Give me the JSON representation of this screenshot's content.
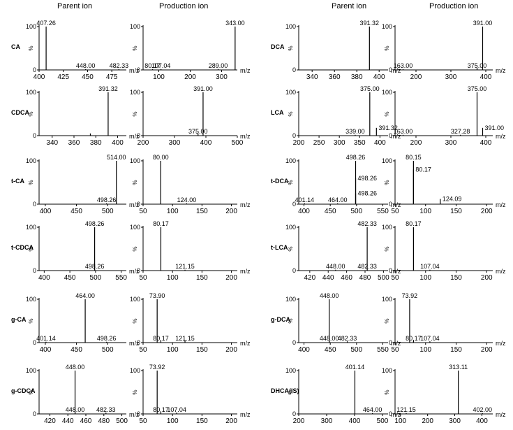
{
  "headers": {
    "left_parent": "Parent ion",
    "left_product": "Production ion",
    "right_parent": "Parent ion",
    "right_product": "Production ion"
  },
  "chart_data": [
    {
      "compound": "CA",
      "type": "bar",
      "role": "parent",
      "ylabel": "%",
      "xlabel": "m/z",
      "xticks": [
        400,
        425,
        450,
        475
      ],
      "xlim": [
        400,
        490
      ],
      "yticks": [
        0,
        100
      ],
      "ylim": [
        0,
        100
      ],
      "peaks": [
        {
          "mz": 407.26,
          "intensity": 100,
          "label": "407.26"
        },
        {
          "mz": 448.0,
          "intensity": 2,
          "label": "448.00"
        },
        {
          "mz": 482.33,
          "intensity": 2,
          "label": "482.33"
        }
      ]
    },
    {
      "compound": "CA",
      "type": "bar",
      "role": "product",
      "ylabel": "%",
      "xlabel": "m/z",
      "xticks": [
        100,
        200,
        300
      ],
      "xlim": [
        50,
        350
      ],
      "yticks": [
        0,
        100
      ],
      "ylim": [
        0,
        100
      ],
      "peaks": [
        {
          "mz": 343.0,
          "intensity": 100,
          "label": "343.00"
        },
        {
          "mz": 80.17,
          "intensity": 2,
          "label": "80.17"
        },
        {
          "mz": 107.04,
          "intensity": 2,
          "label": "107.04"
        },
        {
          "mz": 289.0,
          "intensity": 2,
          "label": "289.00"
        }
      ]
    },
    {
      "compound": "DCA",
      "type": "bar",
      "role": "parent",
      "ylabel": "%",
      "xlabel": "m/z",
      "xticks": [
        340,
        360,
        380,
        400
      ],
      "xlim": [
        328,
        408
      ],
      "yticks": [
        0,
        100
      ],
      "ylim": [
        0,
        100
      ],
      "peaks": [
        {
          "mz": 391.32,
          "intensity": 100,
          "label": "391.32"
        }
      ]
    },
    {
      "compound": "DCA",
      "type": "bar",
      "role": "product",
      "ylabel": "%",
      "xlabel": "m/z",
      "xticks": [
        200,
        300,
        400
      ],
      "xlim": [
        140,
        420
      ],
      "yticks": [
        0,
        100
      ],
      "ylim": [
        0,
        100
      ],
      "peaks": [
        {
          "mz": 391.0,
          "intensity": 100,
          "label": "391.00"
        },
        {
          "mz": 163.0,
          "intensity": 2,
          "label": "163.00"
        },
        {
          "mz": 375.0,
          "intensity": 5,
          "label": "375.00"
        }
      ]
    },
    {
      "compound": "CDCA",
      "type": "bar",
      "role": "parent",
      "ylabel": "%",
      "xlabel": "m/z",
      "xticks": [
        340,
        360,
        380,
        400
      ],
      "xlim": [
        328,
        408
      ],
      "yticks": [
        0,
        100
      ],
      "ylim": [
        0,
        100
      ],
      "peaks": [
        {
          "mz": 391.32,
          "intensity": 100,
          "label": "391.32"
        },
        {
          "mz": 375.0,
          "intensity": 5,
          "label": ""
        }
      ]
    },
    {
      "compound": "CDCA",
      "type": "bar",
      "role": "product",
      "ylabel": "%",
      "xlabel": "m/z",
      "xticks": [
        200,
        300,
        400,
        500
      ],
      "xlim": [
        200,
        500
      ],
      "yticks": [
        0,
        100
      ],
      "ylim": [
        0,
        100
      ],
      "peaks": [
        {
          "mz": 391.0,
          "intensity": 100,
          "label": "391.00"
        },
        {
          "mz": 375.0,
          "intensity": 5,
          "label": "375.00"
        }
      ]
    },
    {
      "compound": "LCA",
      "type": "bar",
      "role": "parent",
      "ylabel": "%",
      "xlabel": "m/z",
      "xticks": [
        200,
        250,
        300,
        350,
        400
      ],
      "xlim": [
        200,
        420
      ],
      "yticks": [
        0,
        100
      ],
      "ylim": [
        0,
        100
      ],
      "peaks": [
        {
          "mz": 375.0,
          "intensity": 100,
          "label": "375.00"
        },
        {
          "mz": 339.0,
          "intensity": 2,
          "label": "339.00"
        },
        {
          "mz": 391.32,
          "intensity": 18,
          "label": "391.32"
        }
      ]
    },
    {
      "compound": "LCA",
      "type": "bar",
      "role": "product",
      "ylabel": "%",
      "xlabel": "m/z",
      "xticks": [
        200,
        300,
        400
      ],
      "xlim": [
        140,
        420
      ],
      "yticks": [
        0,
        100
      ],
      "ylim": [
        0,
        100
      ],
      "peaks": [
        {
          "mz": 375.0,
          "intensity": 100,
          "label": "375.00"
        },
        {
          "mz": 163.0,
          "intensity": 2,
          "label": "163.00"
        },
        {
          "mz": 327.28,
          "intensity": 2,
          "label": "327.28"
        },
        {
          "mz": 391.0,
          "intensity": 18,
          "label": "391.00"
        }
      ]
    },
    {
      "compound": "t-CA",
      "type": "bar",
      "role": "parent",
      "ylabel": "%",
      "xlabel": "m/z",
      "xticks": [
        400,
        450,
        500
      ],
      "xlim": [
        390,
        530
      ],
      "yticks": [
        0,
        100
      ],
      "ylim": [
        0,
        100
      ],
      "peaks": [
        {
          "mz": 514.0,
          "intensity": 100,
          "label": "514.00"
        },
        {
          "mz": 498.26,
          "intensity": 2,
          "label": "498.26"
        }
      ]
    },
    {
      "compound": "t-CA",
      "type": "bar",
      "role": "product",
      "ylabel": "%",
      "xlabel": "m/z",
      "xticks": [
        50,
        100,
        150,
        200
      ],
      "xlim": [
        50,
        210
      ],
      "yticks": [
        0,
        100
      ],
      "ylim": [
        0,
        100
      ],
      "peaks": [
        {
          "mz": 80.0,
          "intensity": 100,
          "label": "80.00"
        },
        {
          "mz": 124.0,
          "intensity": 2,
          "label": "124.00"
        }
      ]
    },
    {
      "compound": "t-DCA",
      "type": "bar",
      "role": "parent",
      "ylabel": "%",
      "xlabel": "m/z",
      "xticks": [
        400,
        450,
        500,
        550
      ],
      "xlim": [
        390,
        560
      ],
      "yticks": [
        0,
        100
      ],
      "ylim": [
        0,
        100
      ],
      "peaks": [
        {
          "mz": 498.26,
          "intensity": 100,
          "label": "498.26"
        },
        {
          "mz": 401.14,
          "intensity": 2,
          "label": "401.14"
        },
        {
          "mz": 464.0,
          "intensity": 2,
          "label": "464.00"
        },
        {
          "mz": 498.26,
          "intensity": 60,
          "label": "498.26"
        },
        {
          "mz": 498.26,
          "intensity": 25,
          "label": "498.26"
        }
      ]
    },
    {
      "compound": "t-DCA",
      "type": "bar",
      "role": "product",
      "ylabel": "%",
      "xlabel": "m/z",
      "xticks": [
        50,
        100,
        150,
        200
      ],
      "xlim": [
        50,
        210
      ],
      "yticks": [
        0,
        100
      ],
      "ylim": [
        0,
        100
      ],
      "peaks": [
        {
          "mz": 80.15,
          "intensity": 100,
          "label": "80.15"
        },
        {
          "mz": 80.17,
          "intensity": 80,
          "label": "80.17"
        },
        {
          "mz": 124.09,
          "intensity": 12,
          "label": "124.09"
        }
      ]
    },
    {
      "compound": "t-CDCA",
      "type": "bar",
      "role": "parent",
      "ylabel": "%",
      "xlabel": "m/z",
      "xticks": [
        400,
        450,
        500,
        550
      ],
      "xlim": [
        390,
        560
      ],
      "yticks": [
        0,
        100
      ],
      "ylim": [
        0,
        100
      ],
      "peaks": [
        {
          "mz": 498.26,
          "intensity": 100,
          "label": "498.26"
        },
        {
          "mz": 498.26,
          "intensity": 3,
          "label": "498.26"
        }
      ]
    },
    {
      "compound": "t-CDCA",
      "type": "bar",
      "role": "product",
      "ylabel": "%",
      "xlabel": "m/z",
      "xticks": [
        50,
        100,
        150,
        200
      ],
      "xlim": [
        50,
        210
      ],
      "yticks": [
        0,
        100
      ],
      "ylim": [
        0,
        100
      ],
      "peaks": [
        {
          "mz": 80.17,
          "intensity": 100,
          "label": "80.17"
        },
        {
          "mz": 121.15,
          "intensity": 2,
          "label": "121.15"
        }
      ]
    },
    {
      "compound": "t-LCA",
      "type": "bar",
      "role": "parent",
      "ylabel": "%",
      "xlabel": "m/z",
      "xticks": [
        420,
        440,
        460,
        480,
        500
      ],
      "xlim": [
        408,
        505
      ],
      "yticks": [
        0,
        100
      ],
      "ylim": [
        0,
        100
      ],
      "peaks": [
        {
          "mz": 482.33,
          "intensity": 100,
          "label": "482.33"
        },
        {
          "mz": 448.0,
          "intensity": 2,
          "label": "448.00"
        },
        {
          "mz": 482.33,
          "intensity": 3,
          "label": "482.33"
        }
      ]
    },
    {
      "compound": "t-LCA",
      "type": "bar",
      "role": "product",
      "ylabel": "%",
      "xlabel": "m/z",
      "xticks": [
        50,
        100,
        150,
        200
      ],
      "xlim": [
        50,
        210
      ],
      "yticks": [
        0,
        100
      ],
      "ylim": [
        0,
        100
      ],
      "peaks": [
        {
          "mz": 80.17,
          "intensity": 100,
          "label": "80.17"
        },
        {
          "mz": 107.04,
          "intensity": 2,
          "label": "107.04"
        }
      ]
    },
    {
      "compound": "g-CA",
      "type": "bar",
      "role": "parent",
      "ylabel": "%",
      "xlabel": "m/z",
      "xticks": [
        400,
        450,
        500
      ],
      "xlim": [
        390,
        530
      ],
      "yticks": [
        0,
        100
      ],
      "ylim": [
        0,
        100
      ],
      "peaks": [
        {
          "mz": 464.0,
          "intensity": 100,
          "label": "464.00"
        },
        {
          "mz": 401.14,
          "intensity": 2,
          "label": "401.14"
        },
        {
          "mz": 498.26,
          "intensity": 2,
          "label": "498.26"
        }
      ]
    },
    {
      "compound": "g-CA",
      "type": "bar",
      "role": "product",
      "ylabel": "%",
      "xlabel": "m/z",
      "xticks": [
        50,
        100,
        150,
        200
      ],
      "xlim": [
        50,
        210
      ],
      "yticks": [
        0,
        100
      ],
      "ylim": [
        0,
        100
      ],
      "peaks": [
        {
          "mz": 73.9,
          "intensity": 100,
          "label": "73.90"
        },
        {
          "mz": 80.17,
          "intensity": 5,
          "label": "80.17"
        },
        {
          "mz": 121.15,
          "intensity": 5,
          "label": "121.15"
        }
      ]
    },
    {
      "compound": "g-DCA",
      "type": "bar",
      "role": "parent",
      "ylabel": "%",
      "xlabel": "m/z",
      "xticks": [
        400,
        450,
        500,
        550
      ],
      "xlim": [
        390,
        560
      ],
      "yticks": [
        0,
        100
      ],
      "ylim": [
        0,
        100
      ],
      "peaks": [
        {
          "mz": 448.0,
          "intensity": 100,
          "label": "448.00"
        },
        {
          "mz": 448.0,
          "intensity": 3,
          "label": "448.00"
        },
        {
          "mz": 482.33,
          "intensity": 3,
          "label": "482.33"
        }
      ]
    },
    {
      "compound": "g-DCA",
      "type": "bar",
      "role": "product",
      "ylabel": "%",
      "xlabel": "m/z",
      "xticks": [
        50,
        100,
        150,
        200
      ],
      "xlim": [
        50,
        210
      ],
      "yticks": [
        0,
        100
      ],
      "ylim": [
        0,
        100
      ],
      "peaks": [
        {
          "mz": 73.92,
          "intensity": 100,
          "label": "73.92"
        },
        {
          "mz": 80.17,
          "intensity": 5,
          "label": "80.17"
        },
        {
          "mz": 107.04,
          "intensity": 3,
          "label": "107.04"
        }
      ]
    },
    {
      "compound": "g-CDCA",
      "type": "bar",
      "role": "parent",
      "ylabel": "%",
      "xlabel": "m/z",
      "xticks": [
        420,
        440,
        460,
        480,
        500
      ],
      "xlim": [
        408,
        505
      ],
      "yticks": [
        0,
        100
      ],
      "ylim": [
        0,
        100
      ],
      "peaks": [
        {
          "mz": 448.0,
          "intensity": 100,
          "label": "448.00"
        },
        {
          "mz": 448.0,
          "intensity": 3,
          "label": "448.00"
        },
        {
          "mz": 482.33,
          "intensity": 3,
          "label": "482.33"
        }
      ]
    },
    {
      "compound": "g-CDCA",
      "type": "bar",
      "role": "product",
      "ylabel": "%",
      "xlabel": "m/z",
      "xticks": [
        50,
        100,
        150,
        200
      ],
      "xlim": [
        50,
        210
      ],
      "yticks": [
        0,
        100
      ],
      "ylim": [
        0,
        100
      ],
      "peaks": [
        {
          "mz": 73.92,
          "intensity": 100,
          "label": "73.92"
        },
        {
          "mz": 80.17,
          "intensity": 5,
          "label": "80.17"
        },
        {
          "mz": 107.04,
          "intensity": 3,
          "label": "107.04"
        }
      ]
    },
    {
      "compound": "DHCA(IS)",
      "type": "bar",
      "role": "parent",
      "ylabel": "%",
      "xlabel": "m/z",
      "xticks": [
        200,
        300,
        400,
        500
      ],
      "xlim": [
        200,
        520
      ],
      "yticks": [
        0,
        100
      ],
      "ylim": [
        0,
        100
      ],
      "peaks": [
        {
          "mz": 401.14,
          "intensity": 100,
          "label": "401.14"
        },
        {
          "mz": 464.0,
          "intensity": 2,
          "label": "464.00"
        }
      ]
    },
    {
      "compound": "DHCA(IS)",
      "type": "bar",
      "role": "product",
      "ylabel": "%",
      "xlabel": "m/z",
      "xticks": [
        100,
        200,
        300,
        400
      ],
      "xlim": [
        80,
        440
      ],
      "yticks": [
        0,
        100
      ],
      "ylim": [
        0,
        100
      ],
      "peaks": [
        {
          "mz": 313.11,
          "intensity": 100,
          "label": "313.11"
        },
        {
          "mz": 121.15,
          "intensity": 2,
          "label": "121.15"
        },
        {
          "mz": 402.0,
          "intensity": 2,
          "label": "402.00"
        }
      ]
    }
  ]
}
